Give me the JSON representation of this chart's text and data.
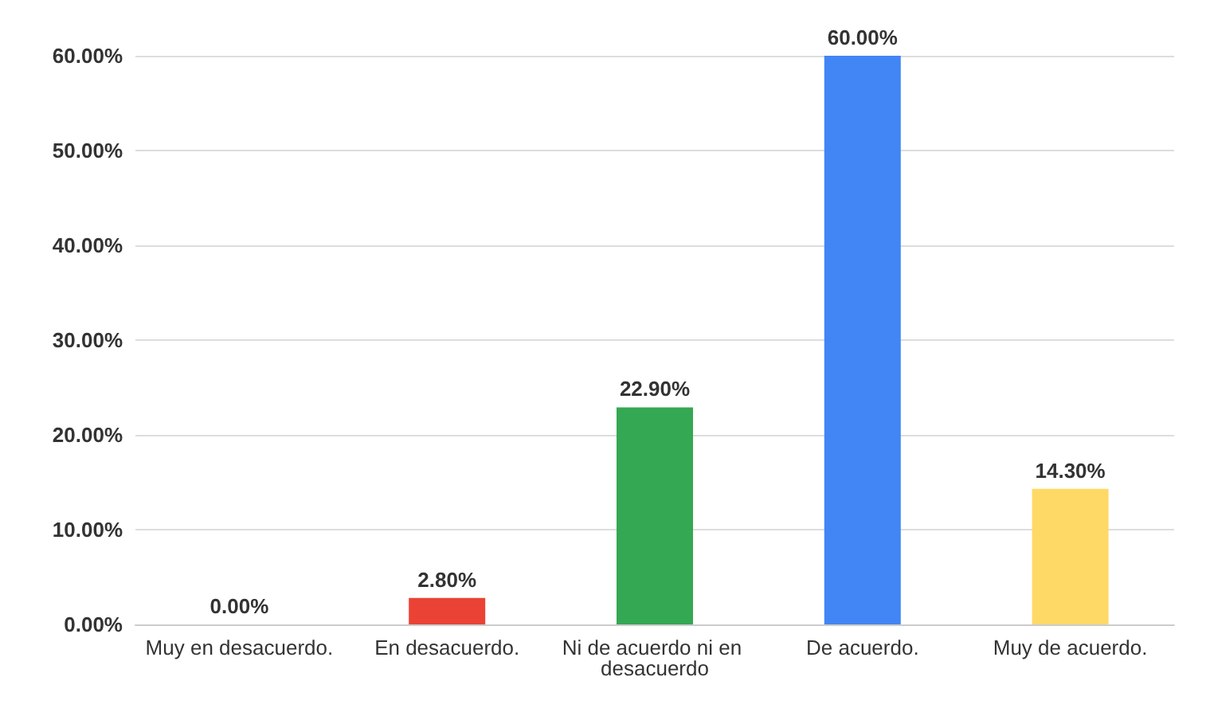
{
  "chart_data": {
    "type": "bar",
    "categories": [
      "Muy en desacuerdo.",
      "En desacuerdo.",
      "Ni de acuerdo ni en desacuerdo",
      "De acuerdo.",
      "Muy de acuerdo."
    ],
    "values": [
      0,
      2.8,
      22.9,
      60,
      14.3
    ],
    "colors": [
      "#c55a11",
      "#ea4335",
      "#34a853",
      "#4285f4",
      "#ffd966"
    ],
    "value_labels": [
      "0.00%",
      "2.80%",
      "22.90%",
      "60.00%",
      "14.30%"
    ],
    "ylim": [
      0,
      60
    ],
    "yticks": [
      {
        "value": 0,
        "label": "0.00%"
      },
      {
        "value": 10,
        "label": "10.00%"
      },
      {
        "value": 20,
        "label": "20.00%"
      },
      {
        "value": 30,
        "label": "30.00%"
      },
      {
        "value": 40,
        "label": "40.00%"
      },
      {
        "value": 50,
        "label": "50.00%"
      },
      {
        "value": 60,
        "label": "60.00%"
      }
    ],
    "grid": true
  }
}
